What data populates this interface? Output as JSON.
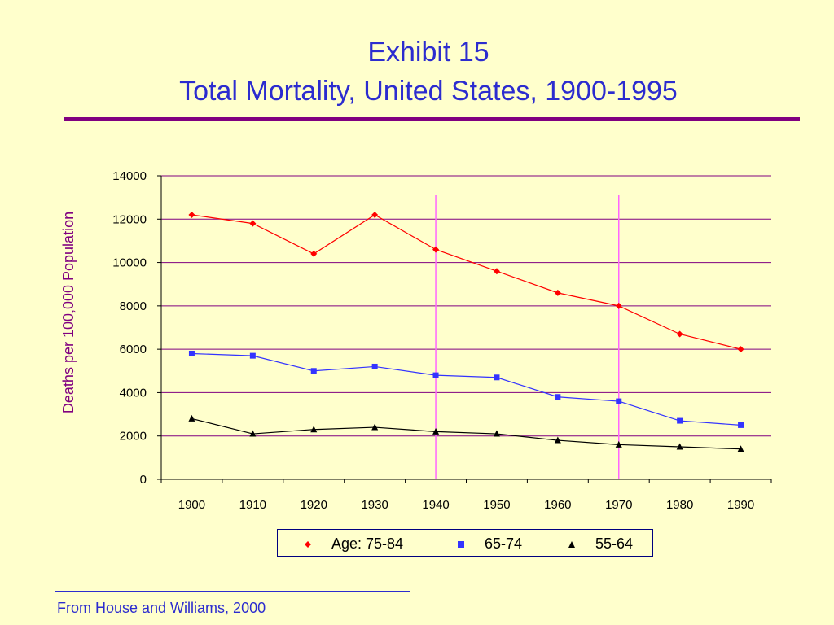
{
  "slide": {
    "title_line1": "Exhibit 15",
    "title_line2": "Total Mortality, United States, 1900-1995",
    "source": "From House and Williams, 2000"
  },
  "colors": {
    "background": "#ffffcc",
    "title": "#2c2ccf",
    "rule": "#800080",
    "axis_title": "#800080",
    "gridline": "#800080",
    "vertical_marker": "#ff66ff"
  },
  "chart_data": {
    "type": "line",
    "title": "",
    "xlabel": "",
    "ylabel": "Deaths per 100,000 Population",
    "categories": [
      "1900",
      "1910",
      "1920",
      "1930",
      "1940",
      "1950",
      "1960",
      "1970",
      "1980",
      "1990"
    ],
    "ylim": [
      0,
      14000
    ],
    "yticks": [
      0,
      2000,
      4000,
      6000,
      8000,
      10000,
      12000,
      14000
    ],
    "grid": true,
    "legend_position": "bottom",
    "reference_lines_x": [
      "1940",
      "1970"
    ],
    "series": [
      {
        "name": "Age: 75-84",
        "color": "#ff0000",
        "marker": "diamond",
        "values": [
          12200,
          11800,
          10400,
          12200,
          10600,
          9600,
          8600,
          8000,
          6700,
          6000
        ]
      },
      {
        "name": "65-74",
        "color": "#3333ff",
        "marker": "square",
        "values": [
          5800,
          5700,
          5000,
          5200,
          4800,
          4700,
          3800,
          3600,
          2700,
          2500
        ]
      },
      {
        "name": "55-64",
        "color": "#000000",
        "marker": "triangle",
        "values": [
          2800,
          2100,
          2300,
          2400,
          2200,
          2100,
          1800,
          1600,
          1500,
          1400
        ]
      }
    ]
  }
}
